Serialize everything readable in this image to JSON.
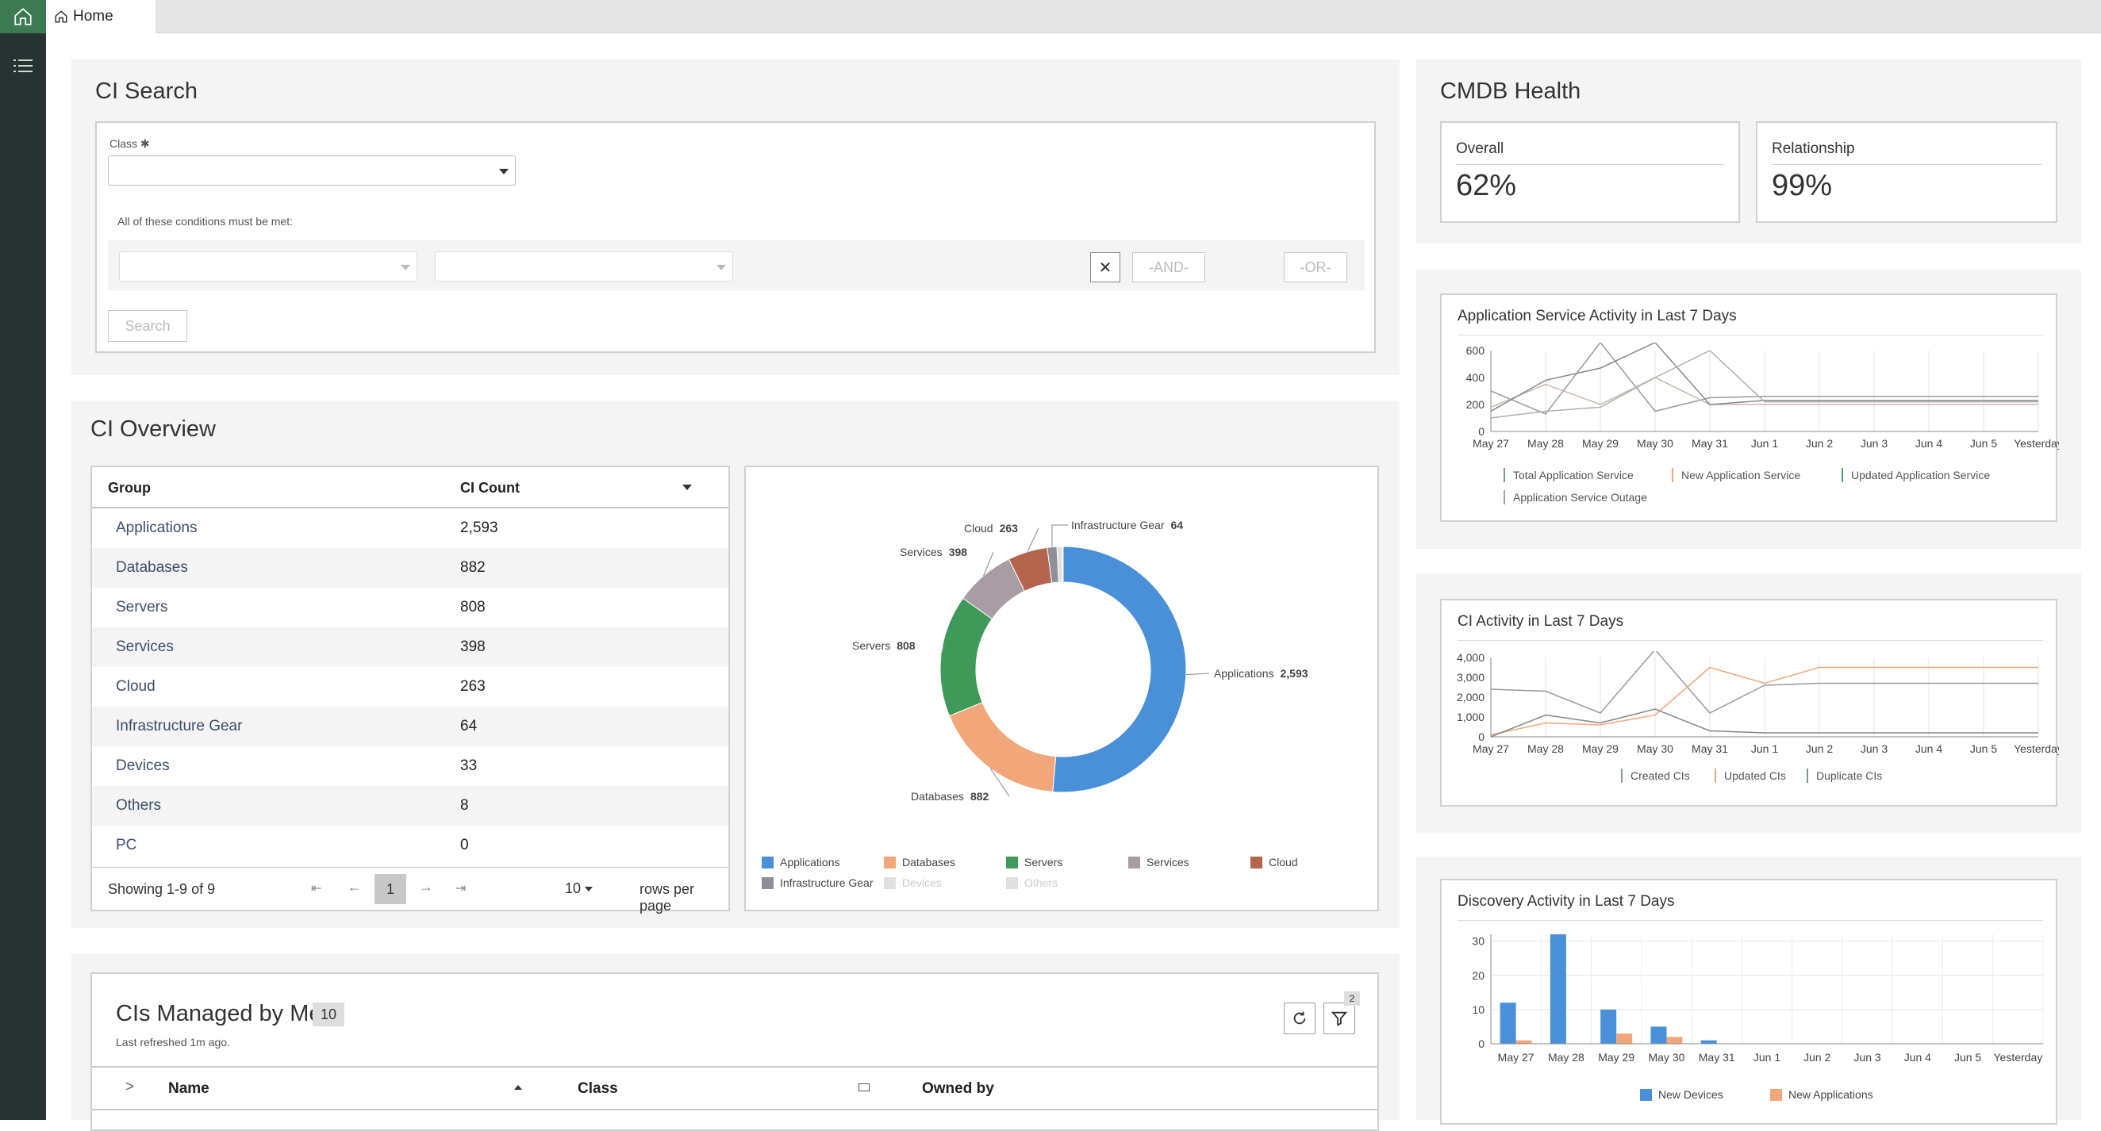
{
  "tab": {
    "label": "Home"
  },
  "ci_search": {
    "title": "CI Search",
    "class_label": "Class",
    "required_mark": "✱",
    "conditions_text": "All of these conditions must be met:",
    "and_label": "-AND-",
    "or_label": "-OR-",
    "search_label": "Search"
  },
  "cmdb_health": {
    "title": "CMDB Health",
    "overall_label": "Overall",
    "overall_value": "62%",
    "relationship_label": "Relationship",
    "relationship_value": "99%"
  },
  "ci_overview": {
    "title": "CI Overview",
    "col_group": "Group",
    "col_count": "CI Count",
    "rows": [
      {
        "group": "Applications",
        "count": "2,593"
      },
      {
        "group": "Databases",
        "count": "882"
      },
      {
        "group": "Servers",
        "count": "808"
      },
      {
        "group": "Services",
        "count": "398"
      },
      {
        "group": "Cloud",
        "count": "263"
      },
      {
        "group": "Infrastructure Gear",
        "count": "64"
      },
      {
        "group": "Devices",
        "count": "33"
      },
      {
        "group": "Others",
        "count": "8"
      },
      {
        "group": "PC",
        "count": "0"
      }
    ],
    "showing": "Showing 1-9 of 9",
    "page": "1",
    "per_page": "10",
    "rows_per_page": "rows per page"
  },
  "donut": {
    "labels": {
      "applications": "Applications",
      "applications_v": "2,593",
      "databases": "Databases",
      "databases_v": "882",
      "servers": "Servers",
      "servers_v": "808",
      "services": "Services",
      "services_v": "398",
      "cloud": "Cloud",
      "cloud_v": "263",
      "infra": "Infrastructure Gear",
      "infra_v": "64"
    },
    "legend": [
      "Applications",
      "Databases",
      "Servers",
      "Services",
      "Cloud",
      "Infrastructure Gear",
      "Devices",
      "Others"
    ],
    "colors": {
      "applications": "#4a90d9",
      "databases": "#f2a77a",
      "servers": "#3f9a5a",
      "services": "#a89da3",
      "cloud": "#b5644e",
      "infra": "#8f8f99",
      "devices": "#e0e0e0",
      "others": "#e0e0e0"
    }
  },
  "cis_managed": {
    "title": "CIs Managed by Me",
    "count": "10",
    "refreshed": "Last refreshed 1m ago.",
    "filter_badge": "2",
    "col_name": "Name",
    "col_class": "Class",
    "col_owned": "Owned by"
  },
  "chart_data": [
    {
      "type": "line",
      "title": "Application Service Activity in Last 7 Days",
      "x": [
        "May 27",
        "May 28",
        "May 29",
        "May 30",
        "May 31",
        "Jun 1",
        "Jun 2",
        "Jun 3",
        "Jun 4",
        "Jun 5",
        "Yesterday"
      ],
      "yticks": [
        "0",
        "200",
        "400",
        "600"
      ],
      "ylim": [
        0,
        600
      ],
      "series": [
        {
          "name": "Total Application Service",
          "values": [
            300,
            130,
            660,
            150,
            250,
            260,
            260,
            260,
            260,
            260,
            260
          ]
        },
        {
          "name": "New Application Service",
          "values": [
            180,
            350,
            200,
            400,
            200,
            200,
            200,
            200,
            200,
            200,
            200
          ]
        },
        {
          "name": "Updated Application Service",
          "values": [
            150,
            380,
            470,
            660,
            200,
            230,
            230,
            230,
            230,
            230,
            230
          ]
        },
        {
          "name": "Application Service Outage",
          "values": [
            100,
            150,
            180,
            400,
            600,
            220,
            220,
            220,
            220,
            220,
            220
          ]
        }
      ]
    },
    {
      "type": "line",
      "title": "CI Activity in Last 7 Days",
      "x": [
        "May 27",
        "May 28",
        "May 29",
        "May 30",
        "May 31",
        "Jun 1",
        "Jun 2",
        "Jun 3",
        "Jun 4",
        "Jun 5",
        "Yesterday"
      ],
      "yticks": [
        "0",
        "1,000",
        "2,000",
        "3,000",
        "4,000"
      ],
      "ylim": [
        0,
        4000
      ],
      "series": [
        {
          "name": "Created CIs",
          "values": [
            2400,
            2300,
            1200,
            4400,
            1200,
            2600,
            2700,
            2700,
            2700,
            2700,
            2700
          ]
        },
        {
          "name": "Updated CIs",
          "values": [
            100,
            700,
            600,
            1100,
            3500,
            2700,
            3500,
            3500,
            3500,
            3500,
            3500
          ]
        },
        {
          "name": "Duplicate CIs",
          "values": [
            0,
            1100,
            700,
            1400,
            300,
            200,
            200,
            200,
            200,
            200,
            200
          ]
        }
      ]
    },
    {
      "type": "bar",
      "title": "Discovery Activity in Last 7 Days",
      "categories": [
        "May 27",
        "May 28",
        "May 29",
        "May 30",
        "May 31",
        "Jun 1",
        "Jun 2",
        "Jun 3",
        "Jun 4",
        "Jun 5",
        "Yesterday"
      ],
      "yticks": [
        "0",
        "10",
        "20",
        "30"
      ],
      "ylim": [
        0,
        32
      ],
      "series": [
        {
          "name": "New Devices",
          "values": [
            12,
            32,
            10,
            5,
            1,
            0,
            0,
            0,
            0,
            0,
            0
          ],
          "color": "#4a90d9"
        },
        {
          "name": "New Applications",
          "values": [
            1,
            0,
            3,
            2,
            0,
            0,
            0,
            0,
            0,
            0,
            0
          ],
          "color": "#f2a77a"
        }
      ]
    },
    {
      "type": "pie",
      "categories": [
        "Applications",
        "Databases",
        "Servers",
        "Services",
        "Cloud",
        "Infrastructure Gear",
        "Devices",
        "Others",
        "PC"
      ],
      "values": [
        2593,
        882,
        808,
        398,
        263,
        64,
        33,
        8,
        0
      ]
    }
  ]
}
